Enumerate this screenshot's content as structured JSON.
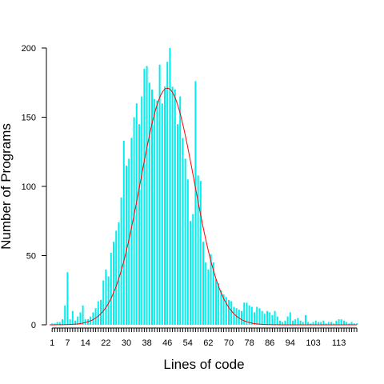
{
  "chart_data": {
    "type": "bar",
    "title": "",
    "xlabel": "Lines of code",
    "ylabel": "Number of Programs",
    "xlim": [
      0,
      120
    ],
    "ylim": [
      0,
      200
    ],
    "x_tick_labels": [
      "1",
      "7",
      "14",
      "22",
      "30",
      "38",
      "46",
      "54",
      "62",
      "70",
      "78",
      "86",
      "94",
      "103",
      "113"
    ],
    "y_tick_labels": [
      "0",
      "50",
      "100",
      "150",
      "200"
    ],
    "bar_color": "#00eeee",
    "curve_color": "#ff0000",
    "series": [
      {
        "type": "bar",
        "x": [
          1,
          2,
          3,
          4,
          5,
          6,
          7,
          8,
          9,
          10,
          11,
          12,
          13,
          14,
          15,
          16,
          17,
          18,
          19,
          20,
          21,
          22,
          23,
          24,
          25,
          26,
          27,
          28,
          29,
          30,
          31,
          32,
          33,
          34,
          35,
          36,
          37,
          38,
          39,
          40,
          41,
          42,
          43,
          44,
          45,
          46,
          47,
          48,
          49,
          50,
          51,
          52,
          53,
          54,
          55,
          56,
          57,
          58,
          59,
          60,
          61,
          62,
          63,
          64,
          65,
          66,
          67,
          68,
          69,
          70,
          71,
          72,
          73,
          74,
          75,
          76,
          77,
          78,
          79,
          80,
          81,
          82,
          83,
          84,
          85,
          86,
          87,
          88,
          89,
          90,
          91,
          92,
          93,
          94,
          95,
          96,
          97,
          98,
          99,
          100,
          101,
          102,
          103,
          104,
          105,
          106,
          107,
          108,
          109,
          110,
          111,
          112,
          113,
          114,
          115,
          116,
          117,
          118,
          119,
          120
        ],
        "values": [
          1,
          1,
          2,
          2,
          4,
          14,
          38,
          4,
          10,
          3,
          6,
          9,
          14,
          4,
          4,
          6,
          9,
          12,
          17,
          18,
          32,
          40,
          35,
          52,
          60,
          68,
          74,
          92,
          133,
          115,
          120,
          135,
          150,
          160,
          145,
          165,
          185,
          187,
          175,
          170,
          163,
          162,
          188,
          160,
          172,
          190,
          200,
          172,
          170,
          145,
          165,
          135,
          120,
          105,
          75,
          80,
          176,
          108,
          104,
          60,
          45,
          40,
          51,
          45,
          33,
          30,
          25,
          22,
          20,
          18,
          17,
          13,
          12,
          11,
          10,
          16,
          16,
          14,
          13,
          9,
          13,
          12,
          10,
          8,
          10,
          9,
          7,
          10,
          6,
          3,
          2,
          3,
          6,
          9,
          3,
          4,
          5,
          3,
          2,
          7,
          2,
          1,
          2,
          3,
          2,
          2,
          3,
          1,
          2,
          2,
          1,
          3,
          4,
          4,
          3,
          2,
          1,
          2,
          1,
          1
        ],
        "name": ""
      },
      {
        "type": "line",
        "name": "",
        "mean": 46,
        "sd": 10.5,
        "peak": 171
      }
    ],
    "grid": false,
    "legend": "none"
  }
}
